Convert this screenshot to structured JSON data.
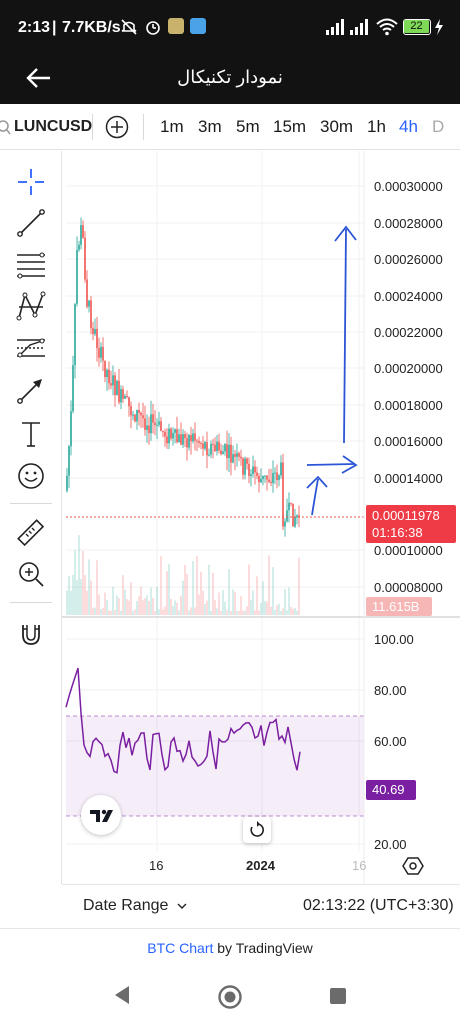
{
  "status": {
    "time": "2:13",
    "speed": "7.7KB/s",
    "battery": "22"
  },
  "appbar": {
    "title": "نمودار تکنیکال"
  },
  "toolbar": {
    "symbol": "LUNCUSD",
    "timeframes": [
      "1m",
      "3m",
      "5m",
      "15m",
      "30m",
      "1h",
      "4h",
      "D"
    ],
    "active_timeframe": "4h"
  },
  "tools": [
    "crosshair-icon",
    "trendline-icon",
    "fib-lines-icon",
    "pattern-icon",
    "forecast-icon",
    "arrow-icon",
    "text-icon",
    "emoji-icon",
    "ruler-icon",
    "zoom-icon",
    "magnet-icon"
  ],
  "price_axis": {
    "labels": [
      "0.00030000",
      "0.00028000",
      "0.00026000",
      "0.00024000",
      "0.00022000",
      "0.00020000",
      "0.00018000",
      "0.00016000",
      "0.00014000",
      "0.00010000",
      "0.00008000"
    ],
    "current_price": "0.00011978",
    "countdown": "01:16:38",
    "volume": "11.615B"
  },
  "rsi_axis": {
    "labels": [
      "100.00",
      "80.00",
      "60.00",
      "20.00"
    ],
    "current": "40.69"
  },
  "time_axis": {
    "labels": [
      "16",
      "2024",
      "16"
    ]
  },
  "bottom": {
    "date_range": "Date Range",
    "clock": "02:13:22 (UTC+3:30)"
  },
  "credit": {
    "link": "BTC Chart",
    "suffix": " by TradingView"
  },
  "colors": {
    "up": "#26a69a",
    "down": "#ef5350",
    "rsi": "#7b1fa2",
    "accent": "#2962ff"
  }
}
